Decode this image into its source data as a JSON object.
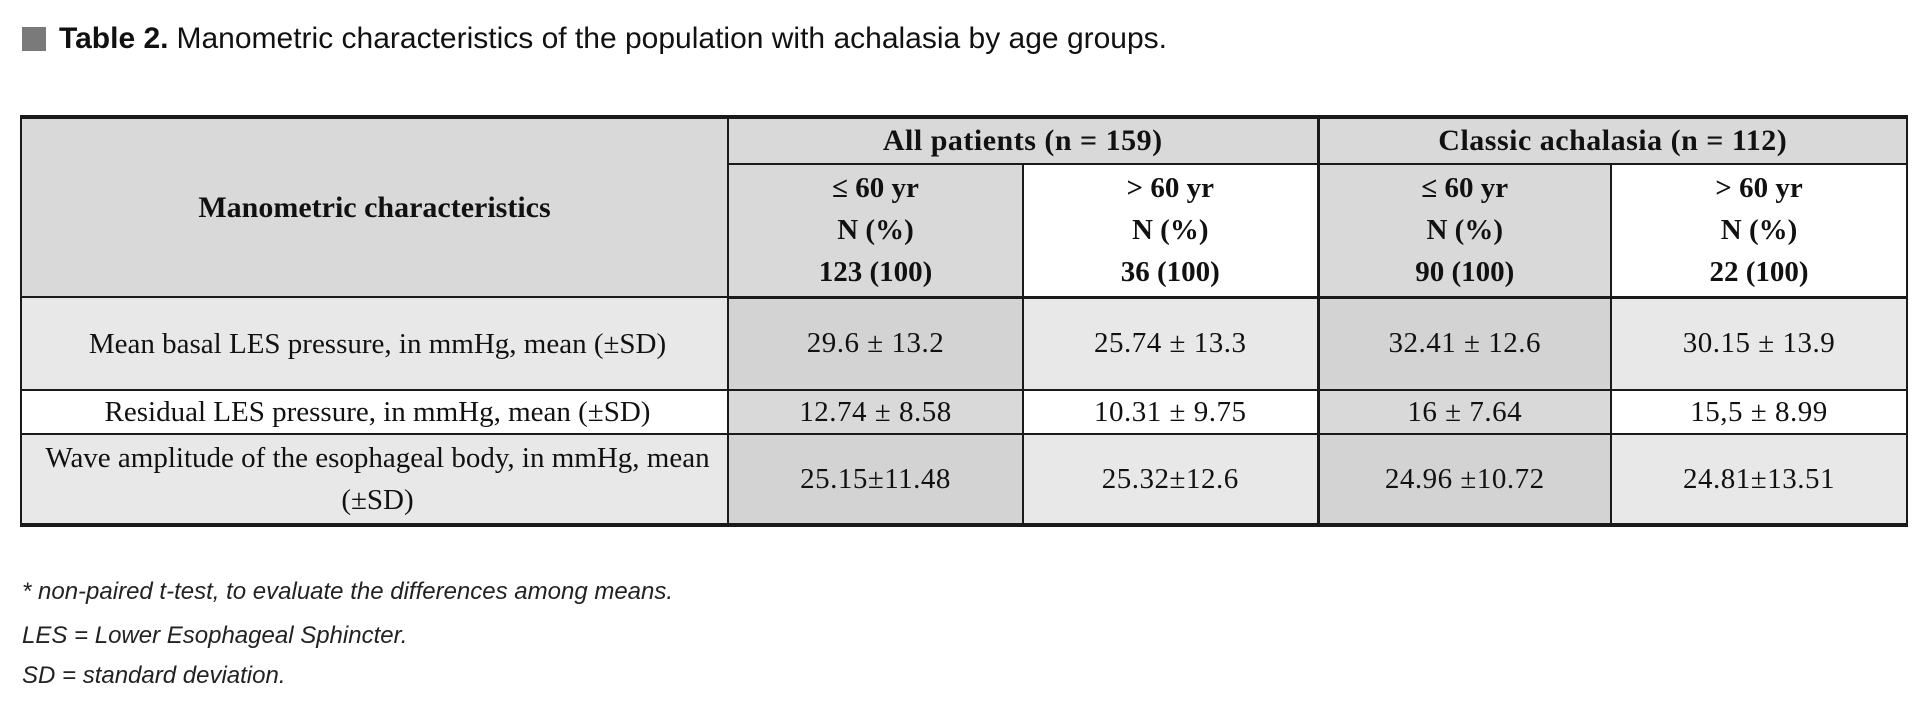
{
  "page": {
    "title_prefix": "Table 2.",
    "title_text": "Manometric characteristics of the population with achalasia by age groups."
  },
  "table": {
    "corner_header": "Manometric characteristics",
    "groups": [
      {
        "label": "All patients (n = 159)"
      },
      {
        "label": "Classic achalasia (n = 112)"
      }
    ],
    "columns": [
      {
        "age": "≤  60 yr",
        "n_label": "N (%)",
        "n_value": "123 (100)"
      },
      {
        "age": ">  60 yr",
        "n_label": "N (%)",
        "n_value": "36 (100)"
      },
      {
        "age": "≤  60 yr",
        "n_label": "N (%)",
        "n_value": "90 (100)"
      },
      {
        "age": ">  60 yr",
        "n_label": "N (%)",
        "n_value": "22 (100)"
      }
    ],
    "rows": [
      {
        "label": "Mean basal LES pressure, in mmHg,  mean (±SD)",
        "values": [
          "29.6 ± 13.2",
          "25.74 ± 13.3",
          "32.41 ± 12.6",
          "30.15 ± 13.9"
        ]
      },
      {
        "label": "Residual LES pressure, in mmHg, mean (±SD)",
        "values": [
          "12.74 ± 8.58",
          "10.31 ± 9.75",
          "16 ± 7.64",
          "15,5 ± 8.99"
        ]
      },
      {
        "label": "Wave amplitude of the esophageal body, in mmHg,  mean (±SD)",
        "values": [
          "25.15±11.48",
          "25.32±12.6",
          "24.96 ±10.72",
          "24.81±13.51"
        ]
      }
    ]
  },
  "footnotes": [
    "* non-paired t-test, to evaluate the differences among means.",
    "LES = Lower Esophageal Sphincter.",
    "SD = standard deviation."
  ],
  "colors": {
    "header_gray": "#d9d9d9",
    "shaded_row_gray": "#e8e8e8",
    "le60_column_gray": "#d9d9d9",
    "intersection_gray": "#d3d3d3",
    "border_black": "#1a1a1a",
    "bullet_gray": "#7a7a7a"
  }
}
